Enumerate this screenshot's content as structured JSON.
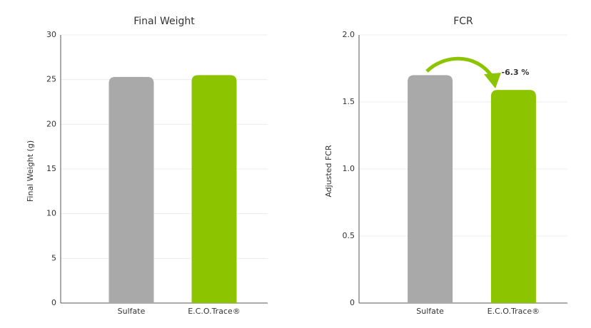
{
  "chart_data": [
    {
      "type": "bar",
      "title": "Final Weight",
      "y_label": "Final Weight (g)",
      "categories": [
        "Sulfate",
        "E.C.O.Trace®"
      ],
      "values": [
        25.3,
        25.5
      ],
      "colors": [
        "#a9a9a9",
        "#8dc400"
      ],
      "ylim": [
        0,
        30
      ],
      "yticks": [
        0,
        5,
        10,
        15,
        20,
        25,
        30
      ],
      "grid": true
    },
    {
      "type": "bar",
      "title": "FCR",
      "y_label": "Adjusted FCR",
      "categories": [
        "Sulfate",
        "E.C.O.Trace®"
      ],
      "values": [
        1.7,
        1.59
      ],
      "colors": [
        "#a9a9a9",
        "#8dc400"
      ],
      "ylim": [
        0,
        2
      ],
      "yticks": [
        0,
        0.5,
        {
          "value": 1,
          "label": "1.0"
        },
        1.5,
        {
          "value": 2,
          "label": "2.0"
        }
      ],
      "grid": true,
      "annotation": "-6.3 %"
    }
  ]
}
